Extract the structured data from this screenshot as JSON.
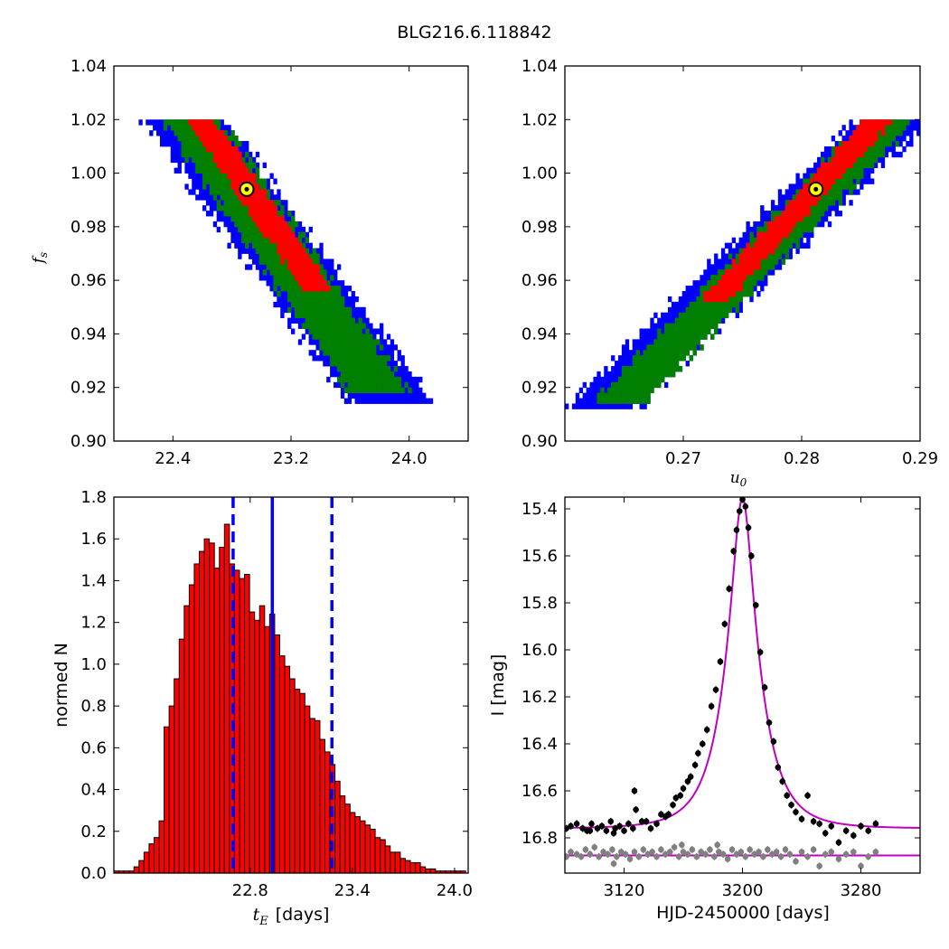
{
  "figure": {
    "suptitle": "BLG216.6.118842"
  },
  "colors": {
    "red": "#ff0000",
    "green": "#007f00",
    "blue": "#0000ff",
    "hist_face": "#ff0000",
    "hist_edge": "#000000",
    "marker_face": "#ffff00",
    "model": "#bf00bf",
    "black_pts": "#000000",
    "grey_pts": "#808080"
  },
  "chart_data": [
    {
      "id": "tE_fs",
      "type": "heatmap",
      "title": "",
      "xlabel": "",
      "ylabel": "f",
      "ylabel_sub": "s",
      "xlim": [
        22.0,
        24.4
      ],
      "ylim": [
        0.9,
        1.04
      ],
      "xticks": [
        22.4,
        23.2,
        24.0
      ],
      "xtick_labels": [
        "22.4",
        "23.2",
        "24.0"
      ],
      "yticks": [
        0.9,
        0.92,
        0.94,
        0.96,
        0.98,
        1.0,
        1.02,
        1.04
      ],
      "ytick_labels": [
        "0.90",
        "0.92",
        "0.94",
        "0.96",
        "0.98",
        "1.00",
        "1.02",
        "1.04"
      ],
      "confidence_regions": [
        {
          "level": "1-sigma",
          "color": "red",
          "centerline": [
            [
              22.58,
              1.02
            ],
            [
              23.38,
              0.957
            ]
          ],
          "halfwidth_x": 0.1,
          "y_range": [
            0.957,
            1.02
          ]
        },
        {
          "level": "2-sigma",
          "color": "green",
          "centerline": [
            [
              22.52,
              1.02
            ],
            [
              23.8,
              0.918
            ]
          ],
          "halfwidth_x": 0.2,
          "y_range": [
            0.918,
            1.02
          ]
        },
        {
          "level": "3-sigma",
          "color": "blue",
          "centerline": [
            [
              22.48,
              1.02
            ],
            [
              23.88,
              0.914
            ]
          ],
          "halfwidth_x": 0.28,
          "y_range": [
            0.914,
            1.02
          ]
        }
      ],
      "best_fit": {
        "x": 22.9,
        "y": 0.994
      }
    },
    {
      "id": "u0_fs",
      "type": "heatmap",
      "title": "",
      "xlabel": "u",
      "xlabel_sub": "0",
      "ylabel": "",
      "xlim": [
        0.26,
        0.29
      ],
      "ylim": [
        0.9,
        1.04
      ],
      "xticks": [
        0.27,
        0.28,
        0.29
      ],
      "xtick_labels": [
        "0.27",
        "0.28",
        "0.29"
      ],
      "yticks": [
        0.9,
        0.92,
        0.94,
        0.96,
        0.98,
        1.0,
        1.02,
        1.04
      ],
      "ytick_labels": [
        "0.90",
        "0.92",
        "0.94",
        "0.96",
        "0.98",
        "1.00",
        "1.02",
        "1.04"
      ],
      "confidence_regions": [
        {
          "level": "1-sigma",
          "color": "red",
          "centerline": [
            [
              0.2725,
              0.952
            ],
            [
              0.2865,
              1.02
            ]
          ],
          "halfwidth_x": 0.0012,
          "y_range": [
            0.952,
            1.02
          ]
        },
        {
          "level": "2-sigma",
          "color": "green",
          "centerline": [
            [
              0.2645,
              0.914
            ],
            [
              0.2875,
              1.02
            ]
          ],
          "halfwidth_x": 0.0022,
          "y_range": [
            0.914,
            1.02
          ]
        },
        {
          "level": "3-sigma",
          "color": "blue",
          "centerline": [
            [
              0.2632,
              0.913
            ],
            [
              0.2878,
              1.02
            ]
          ],
          "halfwidth_x": 0.0031,
          "y_range": [
            0.913,
            1.02
          ]
        }
      ],
      "best_fit": {
        "x": 0.2812,
        "y": 0.994
      }
    },
    {
      "id": "tE_hist",
      "type": "bar",
      "title": "",
      "xlabel": "t",
      "xlabel_sub": "E",
      "xlabel_unit": "[days]",
      "ylabel": "normed N",
      "xlim": [
        22.0,
        24.08
      ],
      "ylim": [
        0.0,
        1.8
      ],
      "xticks": [
        22.8,
        23.4,
        24.0
      ],
      "xtick_labels": [
        "22.8",
        "23.4",
        "24.0"
      ],
      "yticks": [
        0.0,
        0.2,
        0.4,
        0.6,
        0.8,
        1.0,
        1.2,
        1.4,
        1.6,
        1.8
      ],
      "ytick_labels": [
        "0.0",
        "0.2",
        "0.4",
        "0.6",
        "0.8",
        "1.0",
        "1.2",
        "1.4",
        "1.6",
        "1.8"
      ],
      "bin_start": 22.0,
      "bin_width": 0.0295,
      "values": [
        0.01,
        0.01,
        0.01,
        0.01,
        0.03,
        0.06,
        0.1,
        0.14,
        0.17,
        0.25,
        0.7,
        0.8,
        0.93,
        1.12,
        1.28,
        1.38,
        1.48,
        1.54,
        1.6,
        1.58,
        1.46,
        1.56,
        1.67,
        1.48,
        1.45,
        1.41,
        1.43,
        1.25,
        1.21,
        1.28,
        1.18,
        1.24,
        1.14,
        1.04,
        0.99,
        0.93,
        0.88,
        0.86,
        0.8,
        0.74,
        0.73,
        0.64,
        0.58,
        0.52,
        0.44,
        0.37,
        0.33,
        0.29,
        0.27,
        0.25,
        0.23,
        0.21,
        0.17,
        0.16,
        0.13,
        0.1,
        0.1,
        0.07,
        0.06,
        0.05,
        0.05,
        0.03,
        0.02,
        0.02,
        0.01,
        0.01,
        0.01,
        0.01,
        0.01,
        0.01
      ],
      "vlines": [
        {
          "x": 22.7,
          "style": "dashed"
        },
        {
          "x": 22.93,
          "style": "solid"
        },
        {
          "x": 23.28,
          "style": "dashed"
        }
      ]
    },
    {
      "id": "lightcurve",
      "type": "scatter",
      "title": "",
      "xlabel": "HJD-2450000 [days]",
      "ylabel": "I [mag]",
      "xlim": [
        3080,
        3320
      ],
      "ylim": [
        16.95,
        15.35
      ],
      "xticks": [
        3120,
        3200,
        3280
      ],
      "xtick_labels": [
        "3120",
        "3200",
        "3280"
      ],
      "yticks": [
        15.4,
        15.6,
        15.8,
        16.0,
        16.2,
        16.4,
        16.6,
        16.8
      ],
      "ytick_labels": [
        "15.4",
        "15.6",
        "15.8",
        "16.0",
        "16.2",
        "16.4",
        "16.6",
        "16.8"
      ],
      "model": {
        "t0": 3200.0,
        "u0": 0.281,
        "tE": 22.9,
        "base_mag": 16.76,
        "fs": 0.994
      },
      "baseline_line": {
        "mag": 16.875
      },
      "series": [
        {
          "color": "black",
          "error_bar": 0.015,
          "points": [
            [
              3081,
              16.76
            ],
            [
              3084,
              16.75
            ],
            [
              3088,
              16.74
            ],
            [
              3092,
              16.76
            ],
            [
              3095,
              16.77
            ],
            [
              3098,
              16.74
            ],
            [
              3102,
              16.76
            ],
            [
              3105,
              16.75
            ],
            [
              3108,
              16.77
            ],
            [
              3111,
              16.73
            ],
            [
              3114,
              16.76
            ],
            [
              3117,
              16.75
            ],
            [
              3120,
              16.77
            ],
            [
              3123,
              16.74
            ],
            [
              3126,
              16.76
            ],
            [
              3128,
              16.68
            ],
            [
              3132,
              16.73
            ],
            [
              3135,
              16.73
            ],
            [
              3138,
              16.76
            ],
            [
              3142,
              16.74
            ],
            [
              3145,
              16.7
            ],
            [
              3148,
              16.71
            ],
            [
              3150,
              16.7
            ],
            [
              3153,
              16.66
            ],
            [
              3155,
              16.63
            ],
            [
              3158,
              16.62
            ],
            [
              3160,
              16.59
            ],
            [
              3163,
              16.56
            ],
            [
              3165,
              16.54
            ],
            [
              3168,
              16.49
            ],
            [
              3170,
              16.44
            ],
            [
              3173,
              16.4
            ],
            [
              3176,
              16.34
            ],
            [
              3179,
              16.24
            ],
            [
              3182,
              16.17
            ],
            [
              3185,
              16.05
            ],
            [
              3188,
              15.89
            ],
            [
              3191,
              15.74
            ],
            [
              3194,
              15.58
            ],
            [
              3196,
              15.49
            ],
            [
              3198,
              15.41
            ],
            [
              3200,
              15.36
            ],
            [
              3202,
              15.39
            ],
            [
              3204,
              15.48
            ],
            [
              3206,
              15.6
            ],
            [
              3209,
              15.81
            ],
            [
              3212,
              16.01
            ],
            [
              3215,
              16.16
            ],
            [
              3218,
              16.31
            ],
            [
              3221,
              16.39
            ],
            [
              3224,
              16.5
            ],
            [
              3227,
              16.56
            ],
            [
              3230,
              16.62
            ],
            [
              3233,
              16.66
            ],
            [
              3236,
              16.69
            ],
            [
              3240,
              16.72
            ],
            [
              3244,
              16.62
            ],
            [
              3248,
              16.73
            ],
            [
              3252,
              16.74
            ],
            [
              3256,
              16.78
            ],
            [
              3260,
              16.75
            ],
            [
              3265,
              16.82
            ],
            [
              3270,
              16.77
            ],
            [
              3275,
              16.79
            ],
            [
              3280,
              16.75
            ],
            [
              3285,
              16.77
            ],
            [
              3290,
              16.74
            ],
            [
              3127,
              16.6
            ],
            [
              3097,
              16.77
            ],
            [
              3113,
              16.78
            ]
          ]
        },
        {
          "color": "grey",
          "error_bar": 0.015,
          "points": [
            [
              3081,
              16.88
            ],
            [
              3084,
              16.86
            ],
            [
              3088,
              16.87
            ],
            [
              3091,
              16.88
            ],
            [
              3094,
              16.85
            ],
            [
              3097,
              16.87
            ],
            [
              3100,
              16.84
            ],
            [
              3103,
              16.88
            ],
            [
              3106,
              16.86
            ],
            [
              3109,
              16.87
            ],
            [
              3112,
              16.85
            ],
            [
              3115,
              16.88
            ],
            [
              3118,
              16.86
            ],
            [
              3121,
              16.87
            ],
            [
              3124,
              16.89
            ],
            [
              3127,
              16.86
            ],
            [
              3130,
              16.88
            ],
            [
              3133,
              16.85
            ],
            [
              3136,
              16.87
            ],
            [
              3139,
              16.86
            ],
            [
              3142,
              16.88
            ],
            [
              3145,
              16.85
            ],
            [
              3148,
              16.87
            ],
            [
              3151,
              16.86
            ],
            [
              3154,
              16.84
            ],
            [
              3157,
              16.88
            ],
            [
              3160,
              16.86
            ],
            [
              3163,
              16.87
            ],
            [
              3166,
              16.85
            ],
            [
              3169,
              16.88
            ],
            [
              3172,
              16.86
            ],
            [
              3175,
              16.87
            ],
            [
              3178,
              16.85
            ],
            [
              3181,
              16.88
            ],
            [
              3184,
              16.86
            ],
            [
              3187,
              16.87
            ],
            [
              3190,
              16.89
            ],
            [
              3193,
              16.85
            ],
            [
              3196,
              16.87
            ],
            [
              3199,
              16.86
            ],
            [
              3202,
              16.88
            ],
            [
              3205,
              16.85
            ],
            [
              3208,
              16.87
            ],
            [
              3211,
              16.86
            ],
            [
              3214,
              16.88
            ],
            [
              3217,
              16.85
            ],
            [
              3220,
              16.87
            ],
            [
              3223,
              16.86
            ],
            [
              3226,
              16.88
            ],
            [
              3229,
              16.85
            ],
            [
              3232,
              16.87
            ],
            [
              3236,
              16.9
            ],
            [
              3240,
              16.86
            ],
            [
              3244,
              16.88
            ],
            [
              3248,
              16.85
            ],
            [
              3252,
              16.92
            ],
            [
              3256,
              16.87
            ],
            [
              3260,
              16.86
            ],
            [
              3265,
              16.89
            ],
            [
              3270,
              16.87
            ],
            [
              3275,
              16.86
            ],
            [
              3280,
              16.92
            ],
            [
              3285,
              16.88
            ],
            [
              3290,
              16.86
            ],
            [
              3113,
              16.91
            ],
            [
              3159,
              16.83
            ],
            [
              3183,
              16.83
            ]
          ]
        }
      ]
    }
  ]
}
